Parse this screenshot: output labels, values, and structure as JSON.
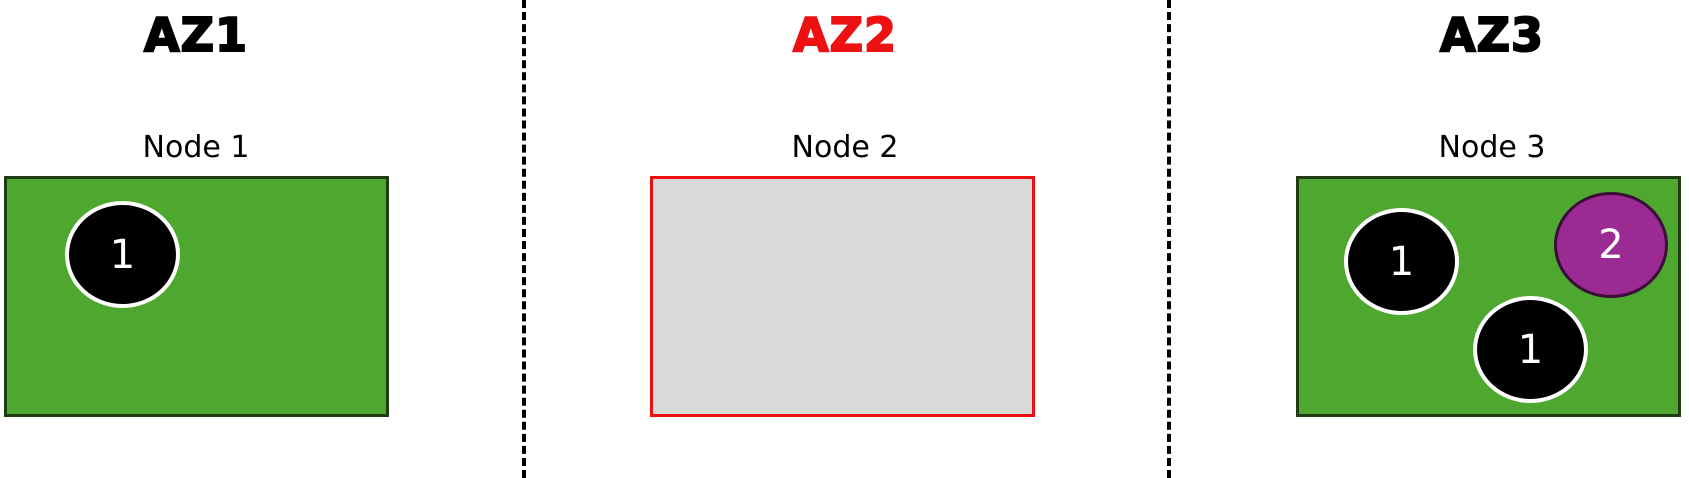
{
  "zones": [
    {
      "title": "AZ1",
      "color": "#000000"
    },
    {
      "title": "AZ2",
      "color": "#ee1111"
    },
    {
      "title": "AZ3",
      "color": "#000000"
    }
  ],
  "nodes": [
    {
      "label": "Node 1",
      "fill": "#4ea72e",
      "border": "#203c12",
      "status": "active"
    },
    {
      "label": "Node 2",
      "fill": "#d9d9d9",
      "border": "#ee1111",
      "status": "empty"
    },
    {
      "label": "Node 3",
      "fill": "#4ea72e",
      "border": "#203c12",
      "status": "active"
    }
  ],
  "pods": [
    {
      "node": "Node 1",
      "label": "1",
      "fill": "#000000",
      "border": "#ffffff"
    },
    {
      "node": "Node 3",
      "label": "1",
      "fill": "#000000",
      "border": "#ffffff"
    },
    {
      "node": "Node 3",
      "label": "1",
      "fill": "#000000",
      "border": "#ffffff"
    },
    {
      "node": "Node 3",
      "label": "2",
      "fill": "#9b2a92",
      "border": "#3d0d3a"
    }
  ]
}
